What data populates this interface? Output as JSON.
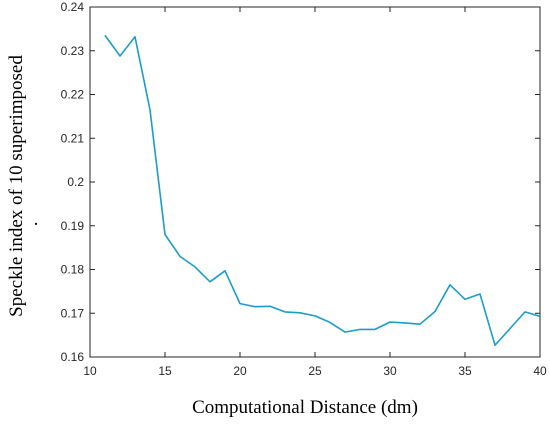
{
  "chart_data": {
    "type": "line",
    "xlabel": "Computational Distance (dm)",
    "ylabel": "Speckle index of 10 superimposed",
    "xlim": [
      10,
      40
    ],
    "ylim": [
      0.16,
      0.24
    ],
    "x_ticks": [
      10,
      15,
      20,
      25,
      30,
      35,
      40
    ],
    "x_tick_labels": [
      "10",
      "15",
      "20",
      "25",
      "30",
      "35",
      "40"
    ],
    "y_ticks": [
      0.16,
      0.17,
      0.18,
      0.19,
      0.2,
      0.21,
      0.22,
      0.23,
      0.24
    ],
    "y_tick_labels": [
      "0.16",
      "0.17",
      "0.18",
      "0.19",
      "0.2",
      "0.21",
      "0.22",
      "0.23",
      "0.24"
    ],
    "grid": false,
    "legend": "none",
    "stray_mark": ".",
    "series": [
      {
        "color": "#1a9dc8",
        "x": [
          11,
          12,
          13,
          14,
          15,
          16,
          17,
          18,
          19,
          20,
          21,
          22,
          23,
          24,
          25,
          26,
          27,
          28,
          29,
          30,
          31,
          32,
          33,
          34,
          35,
          36,
          37,
          38,
          39,
          40
        ],
        "y": [
          0.2335,
          0.2288,
          0.2332,
          0.2165,
          0.188,
          0.183,
          0.1806,
          0.1772,
          0.1797,
          0.1722,
          0.1715,
          0.1716,
          0.1703,
          0.1701,
          0.1694,
          0.1679,
          0.1657,
          0.1663,
          0.1663,
          0.168,
          0.1678,
          0.1675,
          0.1704,
          0.1765,
          0.1732,
          0.1744,
          0.1627,
          0.1665,
          0.1703,
          0.1693
        ]
      }
    ]
  }
}
